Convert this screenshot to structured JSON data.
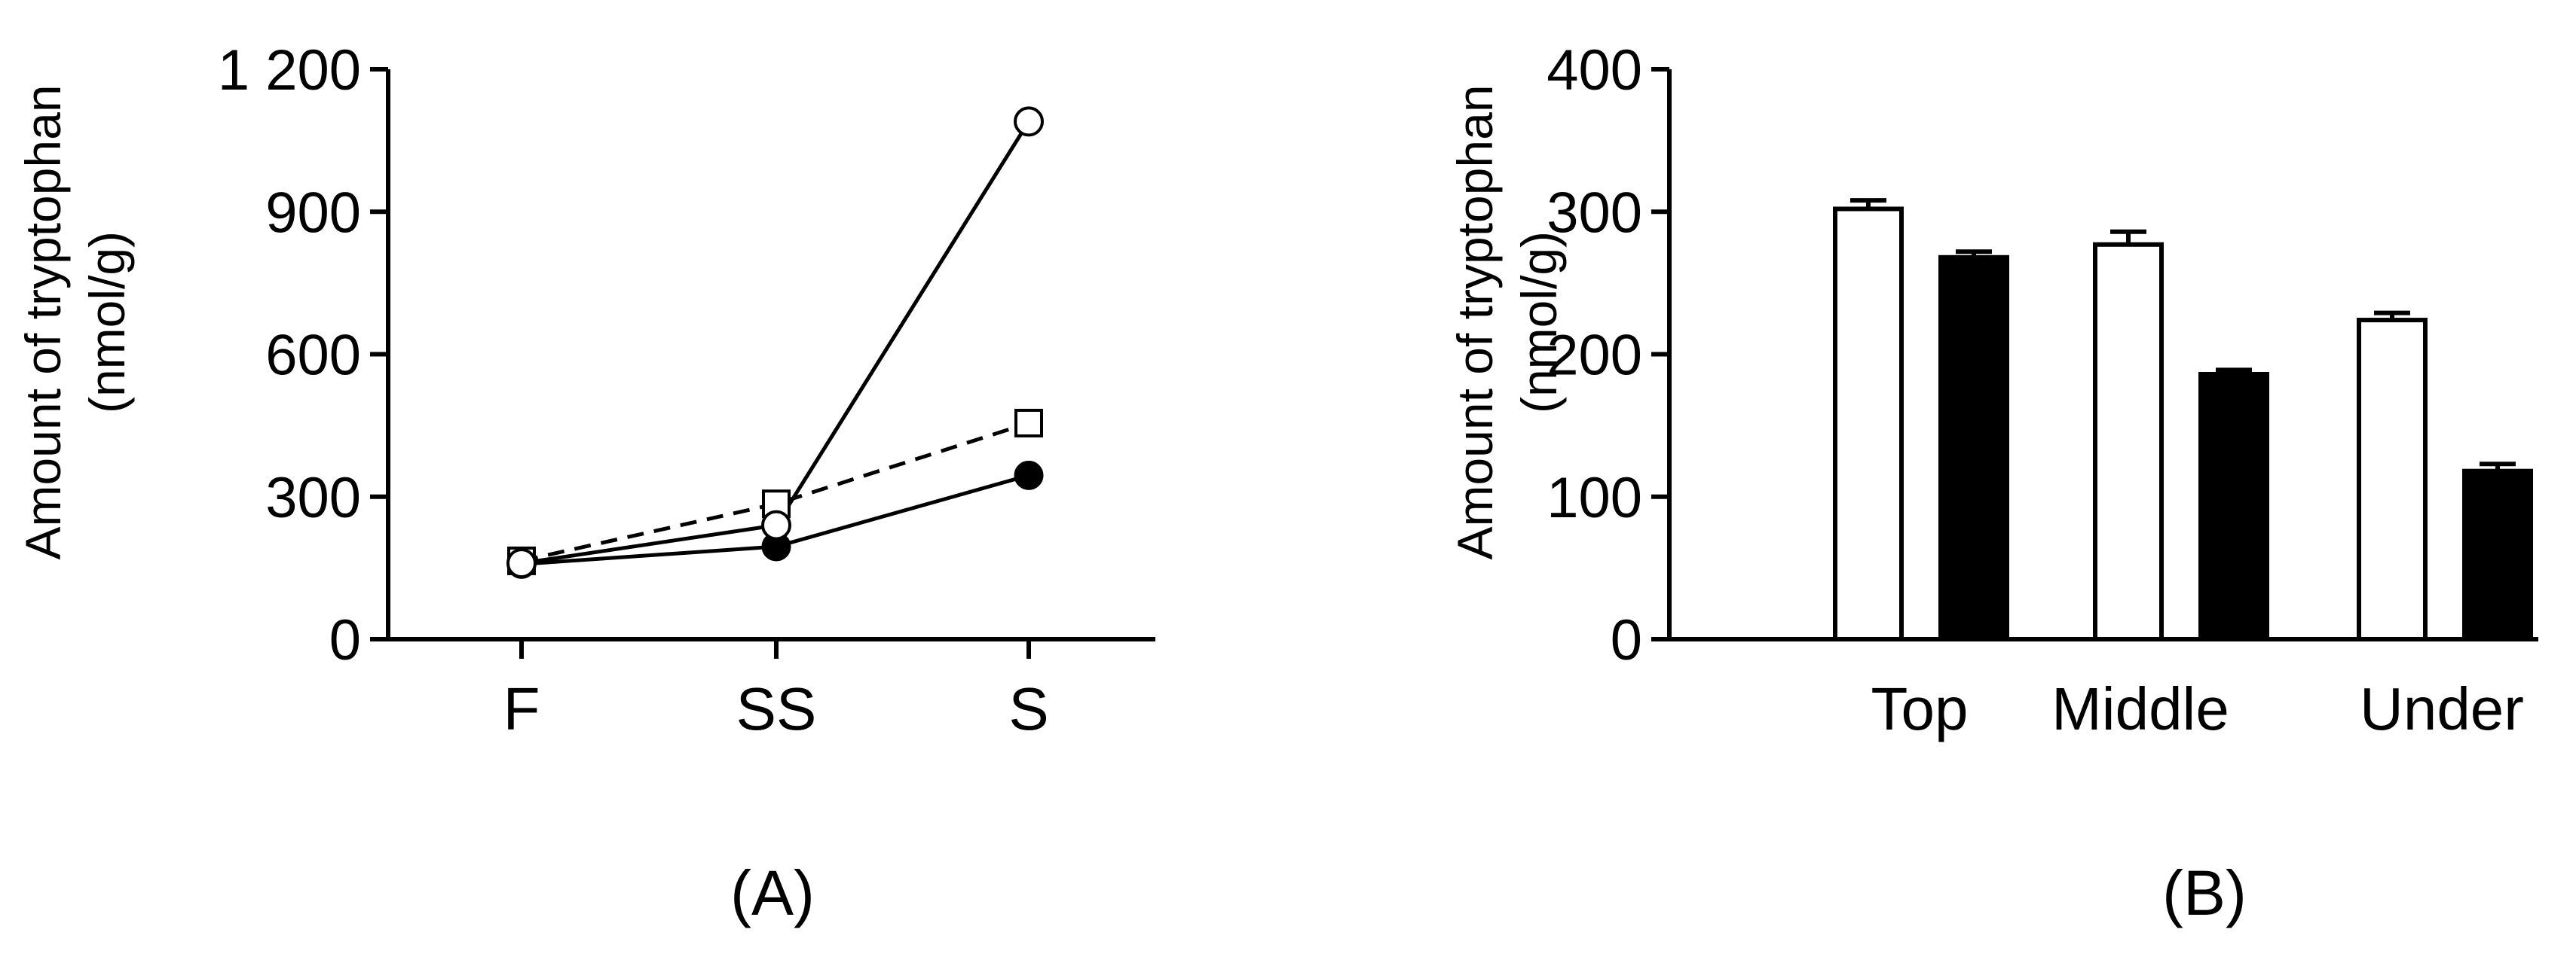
{
  "panels": [
    "(A)",
    "(B)"
  ],
  "chart_data": [
    {
      "type": "line",
      "ylabel": [
        "Amount of tryptophan",
        "(nmol/g)"
      ],
      "categories": [
        "F",
        "SS",
        "S"
      ],
      "yticks": [
        "0",
        "300",
        "600",
        "900",
        "1 200"
      ],
      "ylim": [
        0,
        1200
      ],
      "grid": false,
      "legend": "none",
      "series": [
        {
          "marker": "open-circle",
          "line": "solid",
          "values": [
            160,
            240,
            1090
          ]
        },
        {
          "marker": "open-square",
          "line": "dashed",
          "values": [
            165,
            285,
            455
          ]
        },
        {
          "marker": "filled-circle",
          "line": "solid",
          "values": [
            158,
            195,
            345
          ]
        }
      ]
    },
    {
      "type": "bar",
      "ylabel": [
        "Amount of tryptophan",
        "(nmol/g)"
      ],
      "categories": [
        "Top",
        "Middle",
        "Under"
      ],
      "yticks": [
        "0",
        "100",
        "200",
        "300",
        "400"
      ],
      "ylim": [
        0,
        400
      ],
      "grid": false,
      "legend": "none",
      "series": [
        {
          "fill": "open",
          "values": [
            302,
            277,
            224
          ],
          "errors": [
            6,
            9,
            5
          ]
        },
        {
          "fill": "filled",
          "values": [
            268,
            186,
            118
          ],
          "errors": [
            4,
            3,
            5
          ]
        }
      ]
    }
  ]
}
